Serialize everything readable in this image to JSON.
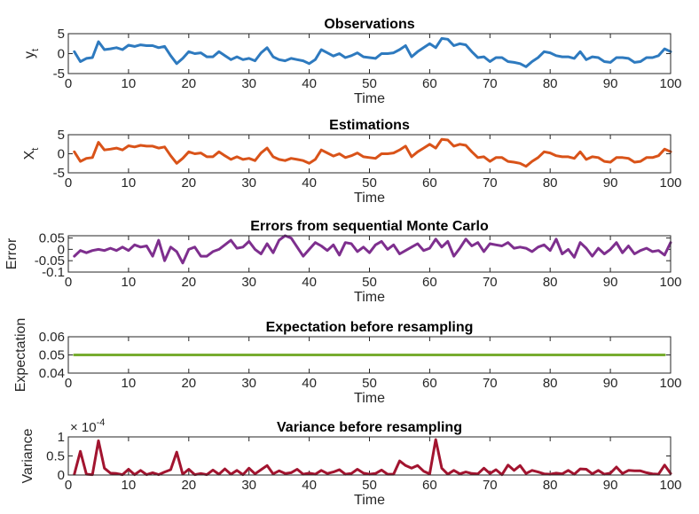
{
  "chart_data": [
    {
      "type": "line",
      "title": "Observations",
      "xlabel": "Time",
      "ylabel": "y",
      "ylabel_sub": "t",
      "xlim": [
        0,
        100
      ],
      "ylim": [
        -5,
        5
      ],
      "xticks": [
        0,
        10,
        20,
        30,
        40,
        50,
        60,
        70,
        80,
        90,
        100
      ],
      "yticks": [
        -5,
        0,
        5
      ],
      "grid": false,
      "color": "#2e7abf",
      "series": [
        {
          "x": [
            1,
            2,
            3,
            4,
            5,
            6,
            7,
            8,
            9,
            10,
            11,
            12,
            13,
            14,
            15,
            16,
            17,
            18,
            19,
            20,
            21,
            22,
            23,
            24,
            25,
            26,
            27,
            28,
            29,
            30,
            31,
            32,
            33,
            34,
            35,
            36,
            37,
            38,
            39,
            40,
            41,
            42,
            43,
            44,
            45,
            46,
            47,
            48,
            49,
            50,
            51,
            52,
            53,
            54,
            55,
            56,
            57,
            58,
            59,
            60,
            61,
            62,
            63,
            64,
            65,
            66,
            67,
            68,
            69,
            70,
            71,
            72,
            73,
            74,
            75,
            76,
            77,
            78,
            79,
            80,
            81,
            82,
            83,
            84,
            85,
            86,
            87,
            88,
            89,
            90,
            91,
            92,
            93,
            94,
            95,
            96,
            97,
            98,
            99,
            100
          ],
          "y": [
            0.5,
            -2.0,
            -1.2,
            -1.0,
            3.0,
            1.0,
            1.2,
            1.5,
            1.0,
            2.1,
            1.8,
            2.2,
            2.0,
            2.0,
            1.5,
            1.8,
            -0.5,
            -2.5,
            -1.2,
            0.5,
            0,
            0.2,
            -0.8,
            -0.8,
            0.5,
            -0.5,
            -1.5,
            -0.8,
            -1.5,
            -1.2,
            -1.8,
            0.2,
            1.5,
            -0.8,
            -1.5,
            -1.8,
            -1.2,
            -1.5,
            -1.8,
            -2.5,
            -1.5,
            1.0,
            0.2,
            -0.6,
            0,
            -1.0,
            -0.5,
            0.2,
            -0.8,
            -1.0,
            -1.2,
            0,
            0,
            0.2,
            1.0,
            2.0,
            -0.8,
            0.5,
            1.5,
            2.5,
            1.5,
            3.8,
            3.6,
            2.0,
            2.5,
            2.2,
            0.5,
            -1.0,
            -0.8,
            -2.0,
            -1.0,
            -1.0,
            -2.0,
            -2.2,
            -2.5,
            -3.3,
            -2.0,
            -1.0,
            0.5,
            0.2,
            -0.5,
            -0.8,
            -0.8,
            -1.2,
            0.5,
            -1.5,
            -0.8,
            -1.0,
            -2.0,
            -2.2,
            -1.0,
            -1.0,
            -1.2,
            -2.2,
            -2.0,
            -1.0,
            -1.0,
            -0.5,
            1.2,
            0.5
          ]
        }
      ]
    },
    {
      "type": "line",
      "title": "Estimations",
      "xlabel": "Time",
      "ylabel": "X",
      "ylabel_sub": "t",
      "xlim": [
        0,
        100
      ],
      "ylim": [
        -5,
        5
      ],
      "xticks": [
        0,
        10,
        20,
        30,
        40,
        50,
        60,
        70,
        80,
        90,
        100
      ],
      "yticks": [
        -5,
        0,
        5
      ],
      "grid": false,
      "color": "#d95319",
      "series": [
        {
          "x": [
            1,
            2,
            3,
            4,
            5,
            6,
            7,
            8,
            9,
            10,
            11,
            12,
            13,
            14,
            15,
            16,
            17,
            18,
            19,
            20,
            21,
            22,
            23,
            24,
            25,
            26,
            27,
            28,
            29,
            30,
            31,
            32,
            33,
            34,
            35,
            36,
            37,
            38,
            39,
            40,
            41,
            42,
            43,
            44,
            45,
            46,
            47,
            48,
            49,
            50,
            51,
            52,
            53,
            54,
            55,
            56,
            57,
            58,
            59,
            60,
            61,
            62,
            63,
            64,
            65,
            66,
            67,
            68,
            69,
            70,
            71,
            72,
            73,
            74,
            75,
            76,
            77,
            78,
            79,
            80,
            81,
            82,
            83,
            84,
            85,
            86,
            87,
            88,
            89,
            90,
            91,
            92,
            93,
            94,
            95,
            96,
            97,
            98,
            99,
            100
          ],
          "y": [
            0.5,
            -2.0,
            -1.2,
            -1.0,
            3.0,
            1.0,
            1.2,
            1.5,
            1.0,
            2.1,
            1.8,
            2.2,
            2.0,
            2.0,
            1.5,
            1.8,
            -0.5,
            -2.5,
            -1.2,
            0.5,
            0,
            0.2,
            -0.8,
            -0.8,
            0.5,
            -0.5,
            -1.5,
            -0.8,
            -1.5,
            -1.2,
            -1.8,
            0.2,
            1.5,
            -0.8,
            -1.5,
            -1.8,
            -1.2,
            -1.5,
            -1.8,
            -2.5,
            -1.5,
            1.0,
            0.2,
            -0.6,
            0,
            -1.0,
            -0.5,
            0.2,
            -0.8,
            -1.0,
            -1.2,
            0,
            0,
            0.2,
            1.0,
            2.0,
            -0.8,
            0.5,
            1.5,
            2.5,
            1.5,
            3.8,
            3.6,
            2.0,
            2.5,
            2.2,
            0.5,
            -1.0,
            -0.8,
            -2.0,
            -1.0,
            -1.0,
            -2.0,
            -2.2,
            -2.5,
            -3.3,
            -2.0,
            -1.0,
            0.5,
            0.2,
            -0.5,
            -0.8,
            -0.8,
            -1.2,
            0.5,
            -1.5,
            -0.8,
            -1.0,
            -2.0,
            -2.2,
            -1.0,
            -1.0,
            -1.2,
            -2.2,
            -2.0,
            -1.0,
            -1.0,
            -0.5,
            1.2,
            0.5
          ]
        }
      ]
    },
    {
      "type": "line",
      "title": "Errors from sequential Monte Carlo",
      "xlabel": "Time",
      "ylabel": "Error",
      "xlim": [
        0,
        100
      ],
      "ylim": [
        -0.1,
        0.06
      ],
      "xticks": [
        0,
        10,
        20,
        30,
        40,
        50,
        60,
        70,
        80,
        90,
        100
      ],
      "yticks": [
        0.05,
        0,
        -0.05,
        -0.1
      ],
      "ytick_labels": [
        "0.05",
        "0",
        "-0.05",
        "-0.1"
      ],
      "grid": false,
      "color": "#7e2f8e",
      "series": [
        {
          "x": [
            1,
            2,
            3,
            4,
            5,
            6,
            7,
            8,
            9,
            10,
            11,
            12,
            13,
            14,
            15,
            16,
            17,
            18,
            19,
            20,
            21,
            22,
            23,
            24,
            25,
            26,
            27,
            28,
            29,
            30,
            31,
            32,
            33,
            34,
            35,
            36,
            37,
            38,
            39,
            40,
            41,
            42,
            43,
            44,
            45,
            46,
            47,
            48,
            49,
            50,
            51,
            52,
            53,
            54,
            55,
            56,
            57,
            58,
            59,
            60,
            61,
            62,
            63,
            64,
            65,
            66,
            67,
            68,
            69,
            70,
            71,
            72,
            73,
            74,
            75,
            76,
            77,
            78,
            79,
            80,
            81,
            82,
            83,
            84,
            85,
            86,
            87,
            88,
            89,
            90,
            91,
            92,
            93,
            94,
            95,
            96,
            97,
            98,
            99,
            100
          ],
          "y": [
            -0.03,
            -0.005,
            -0.015,
            -0.005,
            0,
            -0.005,
            0.005,
            -0.005,
            0.01,
            -0.005,
            0.02,
            0.01,
            0.015,
            -0.03,
            0.04,
            -0.05,
            0.01,
            -0.01,
            -0.06,
            0,
            0.01,
            -0.03,
            -0.03,
            -0.01,
            0,
            0.02,
            0.04,
            0.005,
            0.01,
            0.035,
            0,
            -0.02,
            0.025,
            -0.015,
            0.04,
            0.06,
            0.05,
            0.01,
            -0.03,
            0,
            0.03,
            0.015,
            -0.005,
            0.02,
            -0.025,
            0.03,
            0.025,
            -0.01,
            0.01,
            -0.015,
            0.02,
            0.035,
            0,
            0.02,
            -0.02,
            -0.005,
            0.01,
            0.025,
            -0.005,
            0.005,
            0.045,
            0.01,
            0.035,
            -0.03,
            0.005,
            0.045,
            0.015,
            0.03,
            -0.01,
            0.025,
            0.02,
            0.015,
            0.03,
            0.005,
            0.01,
            0.005,
            -0.01,
            0.01,
            0.02,
            -0.005,
            0.045,
            -0.02,
            0,
            -0.035,
            0.03,
            0.005,
            -0.03,
            0.005,
            -0.02,
            0,
            0.03,
            -0.015,
            0.015,
            -0.02,
            -0.005,
            0.005,
            -0.01,
            -0.005,
            -0.025,
            0.03
          ]
        }
      ]
    },
    {
      "type": "line",
      "title": "Expectation before resampling",
      "xlabel": "Time",
      "ylabel": "Expectation",
      "xlim": [
        0,
        100
      ],
      "ylim": [
        0.04,
        0.06
      ],
      "xticks": [
        0,
        10,
        20,
        30,
        40,
        50,
        60,
        70,
        80,
        90,
        100
      ],
      "yticks": [
        0.06,
        0.05,
        0.04
      ],
      "ytick_labels": [
        "0.06",
        "0.05",
        "0.04"
      ],
      "grid": false,
      "color": "#77ac30",
      "series": [
        {
          "x": [
            1,
            99
          ],
          "y": [
            0.05,
            0.05
          ]
        }
      ]
    },
    {
      "type": "line",
      "title": "Variance before resampling",
      "xlabel": "Time",
      "ylabel": "Variance",
      "xlim": [
        0,
        100
      ],
      "ylim": [
        0,
        0.0001
      ],
      "xticks": [
        0,
        10,
        20,
        30,
        40,
        50,
        60,
        70,
        80,
        90,
        100
      ],
      "yticks": [
        0.0001,
        5e-05,
        0
      ],
      "ytick_labels": [
        "1",
        "0.5",
        "0"
      ],
      "exponent_base": "× 10",
      "exponent_power": "-4",
      "grid": false,
      "color": "#a2142f",
      "series": [
        {
          "x": [
            1,
            2,
            3,
            4,
            5,
            6,
            7,
            8,
            9,
            10,
            11,
            12,
            13,
            14,
            15,
            16,
            17,
            18,
            19,
            20,
            21,
            22,
            23,
            24,
            25,
            26,
            27,
            28,
            29,
            30,
            31,
            32,
            33,
            34,
            35,
            36,
            37,
            38,
            39,
            40,
            41,
            42,
            43,
            44,
            45,
            46,
            47,
            48,
            49,
            50,
            51,
            52,
            53,
            54,
            55,
            56,
            57,
            58,
            59,
            60,
            61,
            62,
            63,
            64,
            65,
            66,
            67,
            68,
            69,
            70,
            71,
            72,
            73,
            74,
            75,
            76,
            77,
            78,
            79,
            80,
            81,
            82,
            83,
            84,
            85,
            86,
            87,
            88,
            89,
            90,
            91,
            92,
            93,
            94,
            95,
            96,
            97,
            98,
            99,
            100
          ],
          "y": [
            2e-06,
            6.2e-05,
            2e-06,
            1e-06,
            9e-05,
            1.8e-05,
            5e-06,
            4e-06,
            1e-06,
            1.5e-05,
            1e-06,
            1.2e-05,
            1e-06,
            6e-06,
            1e-06,
            8e-06,
            1.4e-05,
            6e-05,
            2e-06,
            1.5e-05,
            1e-06,
            4e-06,
            1e-06,
            1.3e-05,
            2e-06,
            1.6e-05,
            2e-06,
            1.2e-05,
            1e-06,
            1.8e-05,
            3e-06,
            1.4e-05,
            2.5e-05,
            3e-06,
            1.1e-05,
            4e-06,
            6e-06,
            1.5e-05,
            2e-06,
            5e-06,
            2e-06,
            1.2e-05,
            4e-06,
            8e-06,
            1.4e-05,
            2e-06,
            4e-06,
            1.5e-05,
            5e-06,
            2e-06,
            4e-06,
            1.3e-05,
            2e-06,
            2e-06,
            3.7e-05,
            2.5e-05,
            1.8e-05,
            2.5e-05,
            1e-05,
            3e-06,
            9.3e-05,
            1.8e-05,
            2e-06,
            1.2e-05,
            3e-06,
            8e-06,
            4e-06,
            3e-06,
            1.8e-05,
            4e-06,
            1.4e-05,
            1e-06,
            2.6e-05,
            1.2e-05,
            2.5e-05,
            4e-06,
            1.2e-05,
            8e-06,
            3e-06,
            2e-06,
            5e-06,
            3e-06,
            1.2e-05,
            2e-06,
            1.6e-05,
            1.5e-05,
            3e-06,
            1.2e-05,
            2e-06,
            5e-06,
            2.1e-05,
            4e-06,
            1.2e-05,
            1.1e-05,
            1.1e-05,
            6e-06,
            3e-06,
            2e-06,
            2.6e-05,
            4e-06
          ]
        }
      ]
    }
  ]
}
